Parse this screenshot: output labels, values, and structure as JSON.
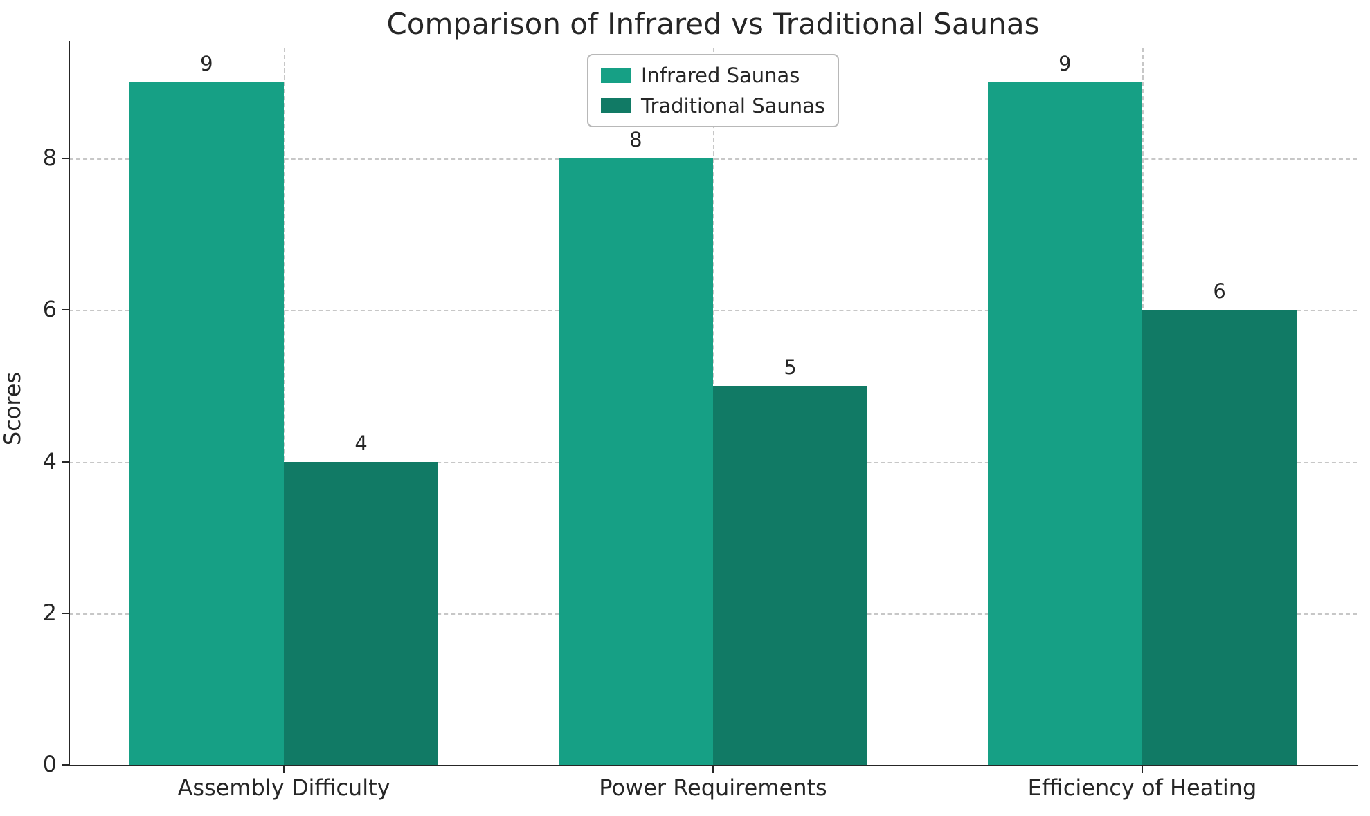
{
  "chart_data": {
    "type": "bar",
    "title": "Comparison of Infrared vs Traditional Saunas",
    "xlabel": "",
    "ylabel": "Scores",
    "categories": [
      "Assembly Difficulty",
      "Power Requirements",
      "Efficiency of Heating"
    ],
    "series": [
      {
        "name": "Infrared Saunas",
        "color": "#16a085",
        "values": [
          9,
          8,
          9
        ]
      },
      {
        "name": "Traditional Saunas",
        "color": "#117a65",
        "values": [
          4,
          5,
          6
        ]
      }
    ],
    "yticks": [
      0,
      2,
      4,
      6,
      8
    ],
    "ylim": [
      0,
      9.46
    ],
    "grid": true,
    "grid_color": "#c7c7c7",
    "axis_color": "#262626",
    "legend_position": "upper center"
  }
}
